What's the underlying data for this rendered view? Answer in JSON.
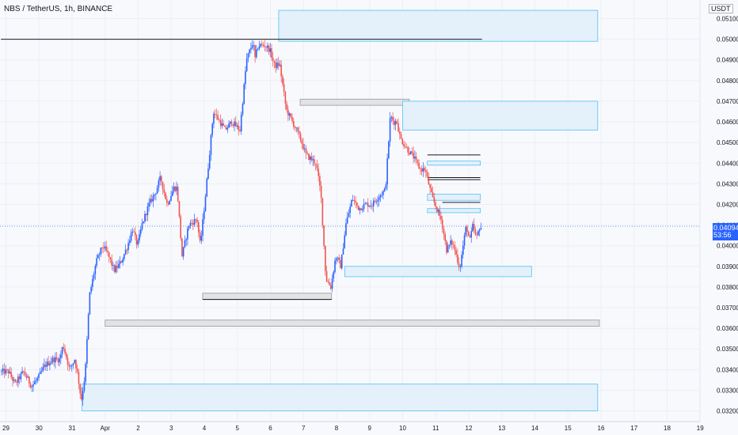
{
  "header": {
    "symbol_title": "NBS / TetherUS, 1h, BINANCE",
    "unit": "USDT"
  },
  "last_price": {
    "value": "0.04094",
    "countdown": "53:56"
  },
  "colors": {
    "bg": "#f8f9fd",
    "up": "#2962ff",
    "down": "#ef5350",
    "zone_blue_fill": "#e4f0fa",
    "zone_blue_stroke": "#4fc3f7",
    "zone_gray_fill": "#e3e3e6",
    "zone_gray_stroke": "#9598a1",
    "axis_text": "#131722",
    "grid": "#eceff4",
    "ray": "#131722",
    "price_line": "#2962ff"
  },
  "chart_data": {
    "type": "candlestick",
    "x_axis": {
      "labels": [
        "29",
        "30",
        "31",
        "Apr",
        "2",
        "3",
        "4",
        "5",
        "6",
        "7",
        "8",
        "9",
        "10",
        "11",
        "12",
        "13",
        "14",
        "15",
        "16",
        "17",
        "18",
        "19"
      ]
    },
    "y_axis": {
      "range": [
        0.0316,
        0.0519
      ],
      "ticks": [
        "0.05100",
        "0.05000",
        "0.04900",
        "0.04800",
        "0.04700",
        "0.04600",
        "0.04500",
        "0.04400",
        "0.04300",
        "0.04200",
        "0.04100",
        "0.04000",
        "0.03900",
        "0.03800",
        "0.03700",
        "0.03600",
        "0.03500",
        "0.03400",
        "0.03300",
        "0.03200"
      ]
    },
    "path_points": [
      [
        -0.15,
        0.0339
      ],
      [
        0.1,
        0.0339
      ],
      [
        0.3,
        0.0333
      ],
      [
        0.55,
        0.0339
      ],
      [
        0.8,
        0.0332
      ],
      [
        1.0,
        0.0336
      ],
      [
        1.2,
        0.0342
      ],
      [
        1.45,
        0.0345
      ],
      [
        1.65,
        0.0345
      ],
      [
        1.75,
        0.0352
      ],
      [
        1.95,
        0.034
      ],
      [
        2.1,
        0.0345
      ],
      [
        2.2,
        0.0337
      ],
      [
        2.3,
        0.0325
      ],
      [
        2.42,
        0.0338
      ],
      [
        2.55,
        0.0376
      ],
      [
        2.75,
        0.0392
      ],
      [
        2.95,
        0.04
      ],
      [
        3.1,
        0.0396
      ],
      [
        3.3,
        0.0388
      ],
      [
        3.5,
        0.0392
      ],
      [
        3.7,
        0.04
      ],
      [
        3.85,
        0.0408
      ],
      [
        4.0,
        0.04
      ],
      [
        4.15,
        0.0411
      ],
      [
        4.35,
        0.042
      ],
      [
        4.55,
        0.0426
      ],
      [
        4.7,
        0.0433
      ],
      [
        4.9,
        0.042
      ],
      [
        5.1,
        0.0428
      ],
      [
        5.2,
        0.0428
      ],
      [
        5.35,
        0.0395
      ],
      [
        5.55,
        0.041
      ],
      [
        5.8,
        0.0413
      ],
      [
        5.9,
        0.04
      ],
      [
        6.05,
        0.0423
      ],
      [
        6.3,
        0.0465
      ],
      [
        6.65,
        0.0456
      ],
      [
        6.85,
        0.046
      ],
      [
        7.1,
        0.0456
      ],
      [
        7.3,
        0.049
      ],
      [
        7.5,
        0.0499
      ],
      [
        7.55,
        0.049
      ],
      [
        7.65,
        0.0497
      ],
      [
        7.85,
        0.0497
      ],
      [
        8.0,
        0.0495
      ],
      [
        8.15,
        0.0487
      ],
      [
        8.3,
        0.0488
      ],
      [
        8.5,
        0.0466
      ],
      [
        8.75,
        0.0458
      ],
      [
        8.95,
        0.0451
      ],
      [
        9.1,
        0.0444
      ],
      [
        9.4,
        0.044
      ],
      [
        9.55,
        0.0425
      ],
      [
        9.7,
        0.0384
      ],
      [
        9.85,
        0.038
      ],
      [
        10.0,
        0.0395
      ],
      [
        10.15,
        0.039
      ],
      [
        10.3,
        0.041
      ],
      [
        10.5,
        0.0423
      ],
      [
        10.7,
        0.0418
      ],
      [
        10.9,
        0.042
      ],
      [
        11.1,
        0.042
      ],
      [
        11.3,
        0.0424
      ],
      [
        11.5,
        0.0427
      ],
      [
        11.65,
        0.0463
      ],
      [
        11.75,
        0.046
      ],
      [
        11.85,
        0.046
      ],
      [
        11.95,
        0.0452
      ],
      [
        12.15,
        0.0447
      ],
      [
        12.35,
        0.0443
      ],
      [
        12.55,
        0.0437
      ],
      [
        12.7,
        0.0437
      ],
      [
        12.9,
        0.0424
      ],
      [
        13.05,
        0.0418
      ],
      [
        13.2,
        0.0412
      ],
      [
        13.35,
        0.0398
      ],
      [
        13.5,
        0.0402
      ],
      [
        13.6,
        0.0398
      ],
      [
        13.75,
        0.0389
      ],
      [
        13.85,
        0.04
      ],
      [
        13.95,
        0.041
      ],
      [
        14.05,
        0.0402
      ],
      [
        14.15,
        0.041
      ],
      [
        14.25,
        0.0403
      ],
      [
        14.35,
        0.0409
      ]
    ],
    "rays": [
      {
        "from_x": -0.15,
        "to_x": 14.4,
        "y": 0.05
      }
    ],
    "price_line": 0.04094,
    "zones": [
      {
        "color": "blue",
        "x1": 8.25,
        "x2": 17.9,
        "y_top": 0.0514,
        "y_bot": 0.0499
      },
      {
        "color": "gray",
        "x1": 8.9,
        "x2": 12.2,
        "y_top": 0.0471,
        "y_bot": 0.0468
      },
      {
        "color": "blue",
        "x1": 12.0,
        "x2": 17.9,
        "y_top": 0.047,
        "y_bot": 0.0456
      },
      {
        "color": "blue",
        "x1": 12.75,
        "x2": 14.35,
        "y_top": 0.0441,
        "y_bot": 0.0439
      },
      {
        "color": "blue",
        "x1": 12.75,
        "x2": 14.35,
        "y_top": 0.0425,
        "y_bot": 0.0422
      },
      {
        "color": "blue",
        "x1": 12.75,
        "x2": 14.35,
        "y_top": 0.0418,
        "y_bot": 0.0416
      },
      {
        "color": "blue",
        "x1": 10.25,
        "x2": 15.9,
        "y_top": 0.039,
        "y_bot": 0.0385
      },
      {
        "color": "gray",
        "x1": 5.95,
        "x2": 9.85,
        "y_top": 0.0377,
        "y_bot": 0.0374
      },
      {
        "color": "gray",
        "x1": 3.0,
        "x2": 17.95,
        "y_top": 0.0364,
        "y_bot": 0.0361
      },
      {
        "color": "blue",
        "x1": 2.3,
        "x2": 17.9,
        "y_top": 0.0333,
        "y_bot": 0.032
      }
    ],
    "marker_lines": [
      {
        "x1": 5.95,
        "x2": 9.85,
        "y": 0.0374
      },
      {
        "x1": 12.75,
        "x2": 14.35,
        "y": 0.0444
      },
      {
        "x1": 12.75,
        "x2": 14.35,
        "y": 0.0433
      },
      {
        "x1": 12.75,
        "x2": 14.35,
        "y": 0.0432
      },
      {
        "x1": 13.2,
        "x2": 14.35,
        "y": 0.0421
      }
    ]
  }
}
